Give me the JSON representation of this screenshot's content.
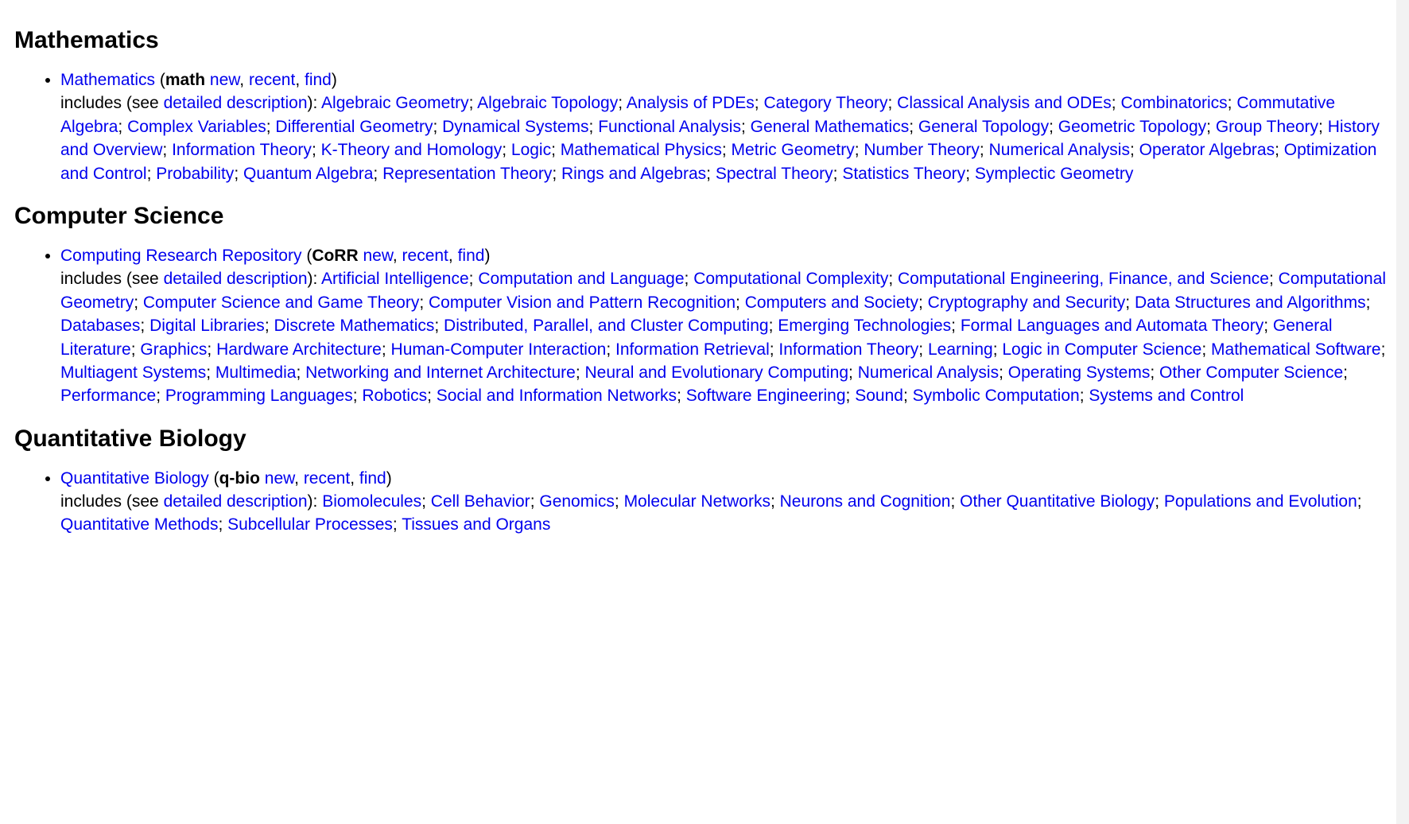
{
  "common": {
    "new": "new",
    "recent": "recent",
    "find": "find",
    "includes_prefix": "includes (see ",
    "detailed": "detailed description",
    "includes_suffix": "): "
  },
  "sections": [
    {
      "heading": "Mathematics",
      "archive_name": "Mathematics",
      "archive_code": "math",
      "subcats": [
        "Algebraic Geometry",
        "Algebraic Topology",
        "Analysis of PDEs",
        "Category Theory",
        "Classical Analysis and ODEs",
        "Combinatorics",
        "Commutative Algebra",
        "Complex Variables",
        "Differential Geometry",
        "Dynamical Systems",
        "Functional Analysis",
        "General Mathematics",
        "General Topology",
        "Geometric Topology",
        "Group Theory",
        "History and Overview",
        "Information Theory",
        "K-Theory and Homology",
        "Logic",
        "Mathematical Physics",
        "Metric Geometry",
        "Number Theory",
        "Numerical Analysis",
        "Operator Algebras",
        "Optimization and Control",
        "Probability",
        "Quantum Algebra",
        "Representation Theory",
        "Rings and Algebras",
        "Spectral Theory",
        "Statistics Theory",
        "Symplectic Geometry"
      ]
    },
    {
      "heading": "Computer Science",
      "archive_name": "Computing Research Repository",
      "archive_code": "CoRR",
      "subcats": [
        "Artificial Intelligence",
        "Computation and Language",
        "Computational Complexity",
        "Computational Engineering, Finance, and Science",
        "Computational Geometry",
        "Computer Science and Game Theory",
        "Computer Vision and Pattern Recognition",
        "Computers and Society",
        "Cryptography and Security",
        "Data Structures and Algorithms",
        "Databases",
        "Digital Libraries",
        "Discrete Mathematics",
        "Distributed, Parallel, and Cluster Computing",
        "Emerging Technologies",
        "Formal Languages and Automata Theory",
        "General Literature",
        "Graphics",
        "Hardware Architecture",
        "Human-Computer Interaction",
        "Information Retrieval",
        "Information Theory",
        "Learning",
        "Logic in Computer Science",
        "Mathematical Software",
        "Multiagent Systems",
        "Multimedia",
        "Networking and Internet Architecture",
        "Neural and Evolutionary Computing",
        "Numerical Analysis",
        "Operating Systems",
        "Other Computer Science",
        "Performance",
        "Programming Languages",
        "Robotics",
        "Social and Information Networks",
        "Software Engineering",
        "Sound",
        "Symbolic Computation",
        "Systems and Control"
      ]
    },
    {
      "heading": "Quantitative Biology",
      "archive_name": "Quantitative Biology",
      "archive_code": "q-bio",
      "subcats": [
        "Biomolecules",
        "Cell Behavior",
        "Genomics",
        "Molecular Networks",
        "Neurons and Cognition",
        "Other Quantitative Biology",
        "Populations and Evolution",
        "Quantitative Methods",
        "Subcellular Processes",
        "Tissues and Organs"
      ]
    }
  ]
}
